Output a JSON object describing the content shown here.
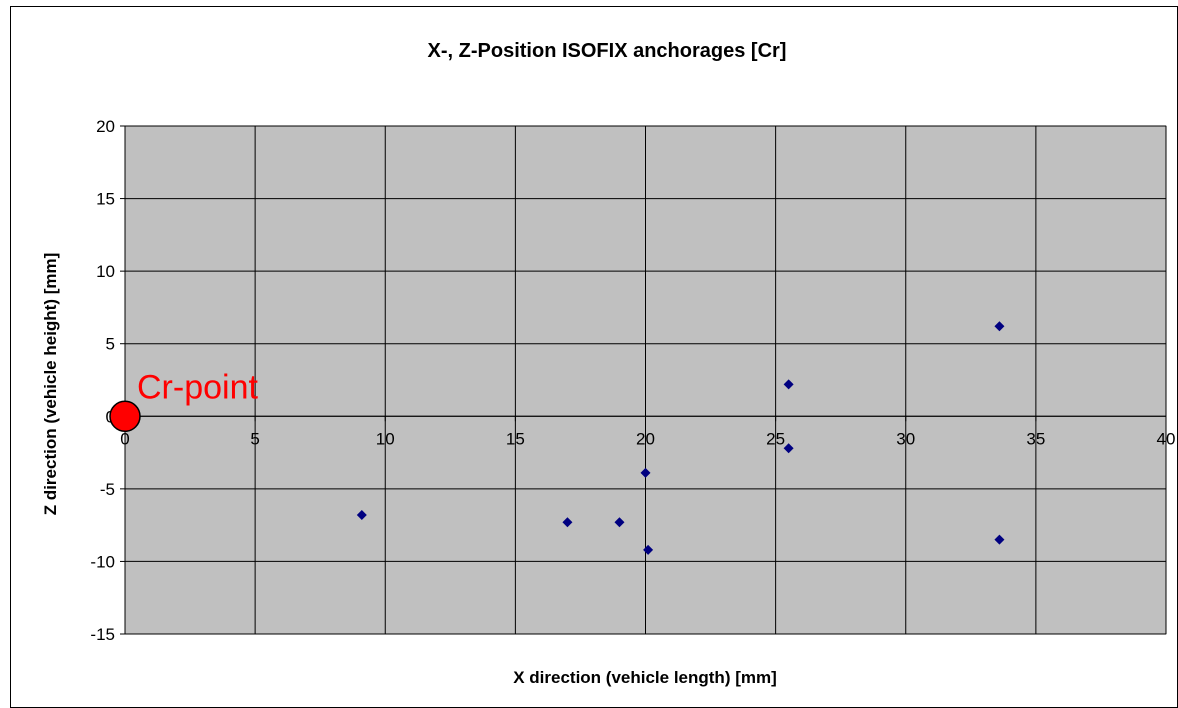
{
  "chart_data": {
    "type": "scatter",
    "title": "X-, Z-Position ISOFIX anchorages [Cr]",
    "xlabel": "X direction (vehicle length) [mm]",
    "ylabel": "Z direction (vehicle height) [mm]",
    "xlim": [
      0,
      40
    ],
    "ylim": [
      -15,
      20
    ],
    "xticks": [
      0,
      5,
      10,
      15,
      20,
      25,
      30,
      35,
      40
    ],
    "yticks": [
      -15,
      -10,
      -5,
      0,
      5,
      10,
      15,
      20
    ],
    "grid": true,
    "plot_background": "#c0c0c0",
    "series": [
      {
        "marker": "diamond",
        "color": "#000080",
        "points": [
          {
            "x": 9.1,
            "y": -6.8
          },
          {
            "x": 17.0,
            "y": -7.3
          },
          {
            "x": 19.0,
            "y": -7.3
          },
          {
            "x": 20.0,
            "y": -3.9
          },
          {
            "x": 20.1,
            "y": -9.2
          },
          {
            "x": 25.5,
            "y": 2.2
          },
          {
            "x": 25.5,
            "y": -2.2
          },
          {
            "x": 33.6,
            "y": 6.2
          },
          {
            "x": 33.6,
            "y": -8.5
          }
        ]
      }
    ],
    "annotations": [
      {
        "text": "Cr-point",
        "x": 0,
        "y": 0,
        "marker": "circle",
        "color": "#ff0000"
      }
    ]
  }
}
